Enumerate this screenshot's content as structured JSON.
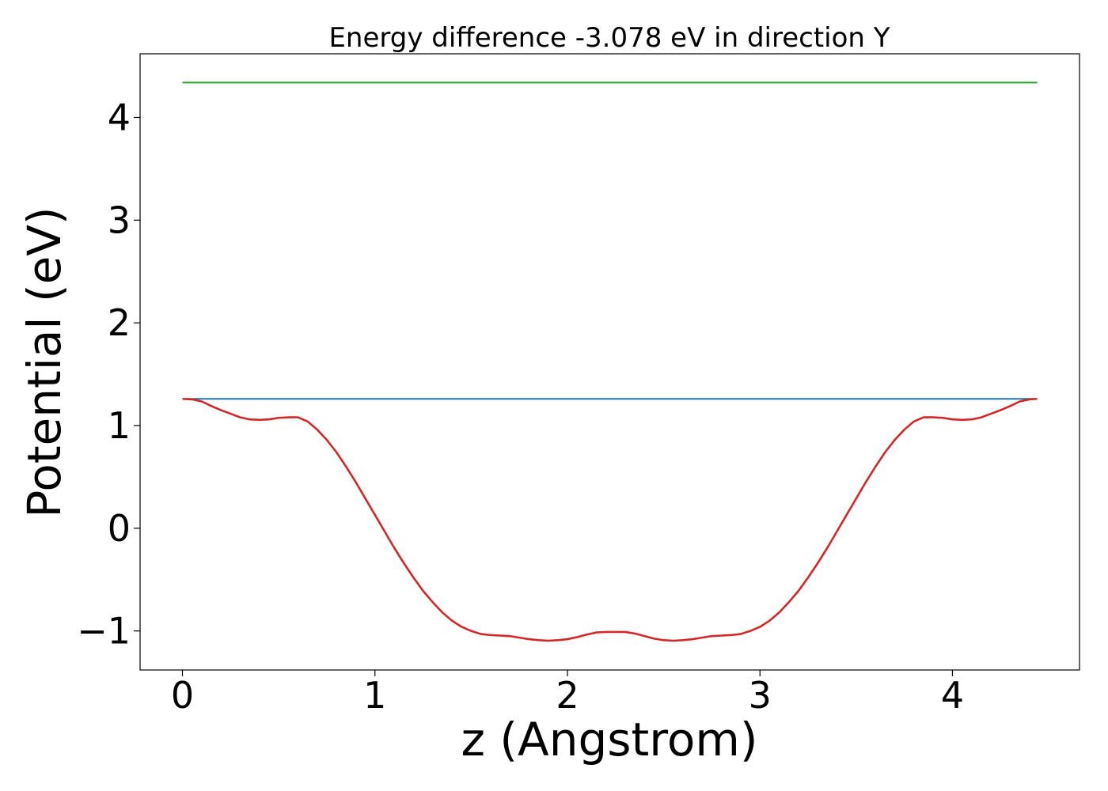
{
  "chart_data": {
    "type": "line",
    "title": "Energy difference -3.078 eV in direction Y",
    "xlabel": "z (Angstrom)",
    "ylabel": "Potential (eV)",
    "xlim": [
      -0.22,
      4.66
    ],
    "ylim": [
      -1.38,
      4.62
    ],
    "xticks": [
      0,
      1,
      2,
      3,
      4
    ],
    "yticks": [
      -1,
      0,
      1,
      2,
      3,
      4
    ],
    "xtick_labels": [
      "0",
      "1",
      "2",
      "3",
      "4"
    ],
    "ytick_labels": [
      "−1",
      "0",
      "1",
      "2",
      "3",
      "4"
    ],
    "grid": false,
    "series": [
      {
        "color": "#2ca02c",
        "x": [
          0,
          4.44
        ],
        "y": [
          4.34,
          4.34
        ]
      },
      {
        "color": "#1f77b4",
        "x": [
          0,
          4.44
        ],
        "y": [
          1.26,
          1.26
        ]
      },
      {
        "color": "#d62728",
        "x": [
          0,
          0.05,
          0.1,
          0.15,
          0.2,
          0.25,
          0.3,
          0.35,
          0.4,
          0.45,
          0.5,
          0.55,
          0.6,
          0.65,
          0.7,
          0.75,
          0.8,
          0.85,
          0.9,
          0.95,
          1.0,
          1.05,
          1.1,
          1.15,
          1.2,
          1.25,
          1.3,
          1.35,
          1.4,
          1.45,
          1.5,
          1.55,
          1.6,
          1.65,
          1.7,
          1.75,
          1.8,
          1.85,
          1.9,
          1.95,
          2.0,
          2.05,
          2.1,
          2.15,
          2.2,
          2.25,
          2.3,
          2.35,
          2.4,
          2.45,
          2.5,
          2.55,
          2.6,
          2.65,
          2.7,
          2.75,
          2.8,
          2.85,
          2.9,
          2.95,
          3.0,
          3.05,
          3.1,
          3.15,
          3.2,
          3.25,
          3.3,
          3.35,
          3.4,
          3.45,
          3.5,
          3.55,
          3.6,
          3.65,
          3.7,
          3.75,
          3.8,
          3.85,
          3.9,
          3.95,
          4.0,
          4.05,
          4.1,
          4.15,
          4.2,
          4.25,
          4.3,
          4.35,
          4.4,
          4.44
        ],
        "y": [
          1.26,
          1.255,
          1.235,
          1.19,
          1.15,
          1.115,
          1.08,
          1.06,
          1.055,
          1.06,
          1.075,
          1.08,
          1.08,
          1.04,
          0.96,
          0.86,
          0.74,
          0.6,
          0.45,
          0.29,
          0.13,
          -0.03,
          -0.19,
          -0.34,
          -0.48,
          -0.61,
          -0.72,
          -0.82,
          -0.9,
          -0.96,
          -1.0,
          -1.03,
          -1.04,
          -1.045,
          -1.05,
          -1.065,
          -1.08,
          -1.09,
          -1.095,
          -1.09,
          -1.08,
          -1.06,
          -1.035,
          -1.015,
          -1.01,
          -1.01,
          -1.01,
          -1.025,
          -1.05,
          -1.075,
          -1.09,
          -1.095,
          -1.09,
          -1.08,
          -1.065,
          -1.05,
          -1.045,
          -1.04,
          -1.03,
          -1.0,
          -0.96,
          -0.9,
          -0.82,
          -0.72,
          -0.61,
          -0.48,
          -0.34,
          -0.19,
          -0.03,
          0.13,
          0.29,
          0.45,
          0.6,
          0.74,
          0.86,
          0.96,
          1.04,
          1.08,
          1.08,
          1.075,
          1.06,
          1.055,
          1.06,
          1.08,
          1.115,
          1.15,
          1.19,
          1.235,
          1.255,
          1.26
        ]
      }
    ]
  }
}
